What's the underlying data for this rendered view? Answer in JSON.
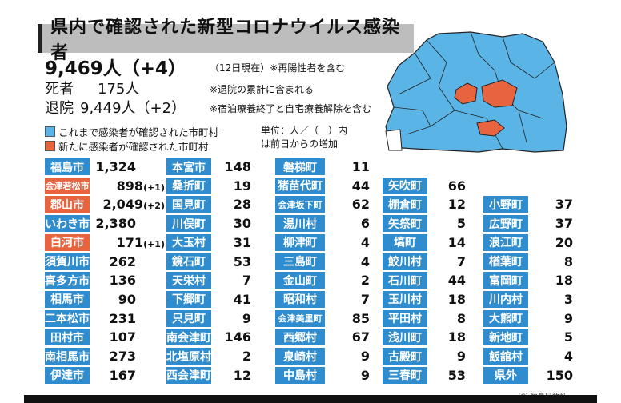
{
  "title": "県内で確認された新型コロナウイルス感染者",
  "summary": {
    "total": "9,469人（+4）",
    "date_note": "（12日現在）※再陽性者を含む",
    "deaths_label": "死者",
    "deaths_value": "175人",
    "deaths_note": "※退院の累計に含まれる",
    "recovered_label": "退院",
    "recovered_value": "9,449人（+2）",
    "recovered_note": "※宿泊療養終了と自宅療養解除を含む"
  },
  "legend": {
    "blue_label": "これまで感染者が確認された市町村",
    "red_label": "新たに感染者が確認された市町村",
    "blue_color": "#2f8dcf",
    "red_color": "#e8643e"
  },
  "unit_note": {
    "line1": "単位：人／（　）内",
    "line2": "は前日からの増加"
  },
  "columns": [
    [
      {
        "name": "福島市",
        "count": "1,324",
        "inc": "",
        "color": "blue"
      },
      {
        "name": "会津若松市",
        "count": "898",
        "inc": "(+1)",
        "color": "red"
      },
      {
        "name": "郡山市",
        "count": "2,049",
        "inc": "(+2)",
        "color": "red"
      },
      {
        "name": "いわき市",
        "count": "2,380",
        "inc": "",
        "color": "blue"
      },
      {
        "name": "白河市",
        "count": "171",
        "inc": "(+1)",
        "color": "red"
      },
      {
        "name": "須賀川市",
        "count": "262",
        "inc": "",
        "color": "blue"
      },
      {
        "name": "喜多方市",
        "count": "136",
        "inc": "",
        "color": "blue"
      },
      {
        "name": "相馬市",
        "count": "90",
        "inc": "",
        "color": "blue"
      },
      {
        "name": "二本松市",
        "count": "231",
        "inc": "",
        "color": "blue"
      },
      {
        "name": "田村市",
        "count": "107",
        "inc": "",
        "color": "blue"
      },
      {
        "name": "南相馬市",
        "count": "273",
        "inc": "",
        "color": "blue"
      },
      {
        "name": "伊達市",
        "count": "167",
        "inc": "",
        "color": "blue"
      }
    ],
    [
      {
        "name": "本宮市",
        "count": "148",
        "inc": "",
        "color": "blue"
      },
      {
        "name": "桑折町",
        "count": "19",
        "inc": "",
        "color": "blue"
      },
      {
        "name": "国見町",
        "count": "28",
        "inc": "",
        "color": "blue"
      },
      {
        "name": "川俣町",
        "count": "30",
        "inc": "",
        "color": "blue"
      },
      {
        "name": "大玉村",
        "count": "31",
        "inc": "",
        "color": "blue"
      },
      {
        "name": "鏡石町",
        "count": "53",
        "inc": "",
        "color": "blue"
      },
      {
        "name": "天栄村",
        "count": "7",
        "inc": "",
        "color": "blue"
      },
      {
        "name": "下郷町",
        "count": "41",
        "inc": "",
        "color": "blue"
      },
      {
        "name": "只見町",
        "count": "9",
        "inc": "",
        "color": "blue"
      },
      {
        "name": "南会津町",
        "count": "146",
        "inc": "",
        "color": "blue"
      },
      {
        "name": "北塩原村",
        "count": "2",
        "inc": "",
        "color": "blue"
      },
      {
        "name": "西会津町",
        "count": "12",
        "inc": "",
        "color": "blue"
      }
    ],
    [
      {
        "name": "磐梯町",
        "count": "11",
        "inc": "",
        "color": "blue"
      },
      {
        "name": "猪苗代町",
        "count": "44",
        "inc": "",
        "color": "blue"
      },
      {
        "name": "会津坂下町",
        "count": "62",
        "inc": "",
        "color": "blue"
      },
      {
        "name": "湯川村",
        "count": "6",
        "inc": "",
        "color": "blue"
      },
      {
        "name": "柳津町",
        "count": "4",
        "inc": "",
        "color": "blue"
      },
      {
        "name": "三島町",
        "count": "4",
        "inc": "",
        "color": "blue"
      },
      {
        "name": "金山町",
        "count": "2",
        "inc": "",
        "color": "blue"
      },
      {
        "name": "昭和村",
        "count": "7",
        "inc": "",
        "color": "blue"
      },
      {
        "name": "会津美里町",
        "count": "85",
        "inc": "",
        "color": "blue"
      },
      {
        "name": "西郷村",
        "count": "67",
        "inc": "",
        "color": "blue"
      },
      {
        "name": "泉崎村",
        "count": "9",
        "inc": "",
        "color": "blue"
      },
      {
        "name": "中島村",
        "count": "9",
        "inc": "",
        "color": "blue"
      }
    ],
    [
      {
        "name": "矢吹町",
        "count": "66",
        "inc": "",
        "color": "blue"
      },
      {
        "name": "棚倉町",
        "count": "12",
        "inc": "",
        "color": "blue"
      },
      {
        "name": "矢祭町",
        "count": "5",
        "inc": "",
        "color": "blue"
      },
      {
        "name": "塙町",
        "count": "14",
        "inc": "",
        "color": "blue"
      },
      {
        "name": "鮫川村",
        "count": "7",
        "inc": "",
        "color": "blue"
      },
      {
        "name": "石川町",
        "count": "44",
        "inc": "",
        "color": "blue"
      },
      {
        "name": "玉川村",
        "count": "18",
        "inc": "",
        "color": "blue"
      },
      {
        "name": "平田村",
        "count": "8",
        "inc": "",
        "color": "blue"
      },
      {
        "name": "浅川町",
        "count": "18",
        "inc": "",
        "color": "blue"
      },
      {
        "name": "古殿町",
        "count": "9",
        "inc": "",
        "color": "blue"
      },
      {
        "name": "三春町",
        "count": "53",
        "inc": "",
        "color": "blue"
      }
    ],
    [
      {
        "name": "小野町",
        "count": "37",
        "inc": "",
        "color": "blue"
      },
      {
        "name": "広野町",
        "count": "37",
        "inc": "",
        "color": "blue"
      },
      {
        "name": "浪江町",
        "count": "20",
        "inc": "",
        "color": "blue"
      },
      {
        "name": "楢葉町",
        "count": "8",
        "inc": "",
        "color": "blue"
      },
      {
        "name": "富岡町",
        "count": "18",
        "inc": "",
        "color": "blue"
      },
      {
        "name": "川内村",
        "count": "3",
        "inc": "",
        "color": "blue"
      },
      {
        "name": "大熊町",
        "count": "9",
        "inc": "",
        "color": "blue"
      },
      {
        "name": "新地町",
        "count": "5",
        "inc": "",
        "color": "blue"
      },
      {
        "name": "飯舘村",
        "count": "4",
        "inc": "",
        "color": "blue"
      },
      {
        "name": "県外",
        "count": "150",
        "inc": "",
        "color": "blue"
      }
    ]
  ],
  "credit": "(C) 福島民放社"
}
